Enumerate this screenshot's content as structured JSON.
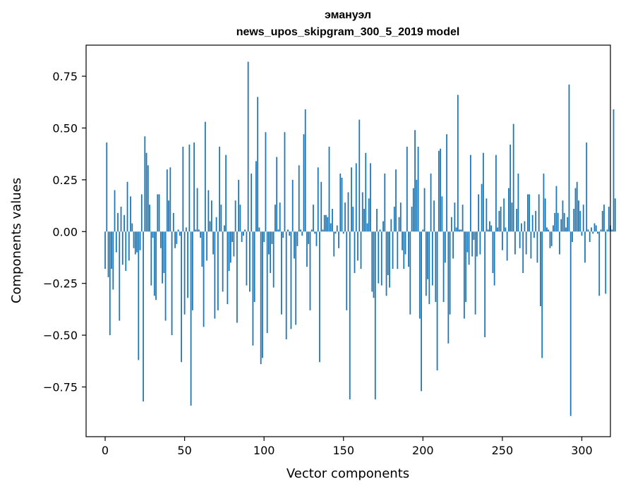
{
  "chart_data": {
    "type": "bar",
    "title_lines": [
      "эмануэл",
      "news_upos_skipgram_300_5_2019 model"
    ],
    "xlabel": "Vector components",
    "ylabel": "Components values",
    "xlim": [
      -12,
      318
    ],
    "ylim": [
      -0.99,
      0.9
    ],
    "xticks": [
      0,
      50,
      100,
      150,
      200,
      250,
      300
    ],
    "xtick_labels": [
      "0",
      "50",
      "100",
      "150",
      "200",
      "250",
      "300"
    ],
    "yticks": [
      -0.75,
      -0.5,
      -0.25,
      0.0,
      0.25,
      0.5,
      0.75
    ],
    "ytick_labels": [
      "−0.75",
      "−0.50",
      "−0.25",
      "0.00",
      "0.25",
      "0.50",
      "0.75"
    ],
    "grid": false,
    "bar_color": "#1f77b4",
    "values": [
      -0.18,
      0.43,
      -0.22,
      -0.5,
      -0.18,
      -0.28,
      0.2,
      -0.1,
      0.09,
      -0.43,
      0.12,
      -0.16,
      0.08,
      -0.19,
      0.24,
      -0.14,
      0.17,
      0.04,
      -0.08,
      -0.11,
      -0.1,
      -0.62,
      -0.09,
      0.18,
      -0.82,
      0.46,
      0.38,
      0.32,
      0.13,
      -0.26,
      -0.03,
      -0.31,
      -0.33,
      0.18,
      0.18,
      -0.08,
      -0.25,
      -0.2,
      -0.43,
      0.3,
      0.15,
      0.31,
      -0.5,
      0.09,
      -0.08,
      -0.06,
      0.01,
      -0.02,
      -0.63,
      0.41,
      -0.4,
      0.02,
      -0.32,
      0.42,
      -0.84,
      -0.38,
      0.43,
      0.01,
      0.21,
      0.01,
      -0.03,
      -0.17,
      -0.46,
      0.53,
      -0.14,
      0.2,
      0.05,
      0.15,
      -0.11,
      -0.42,
      0.07,
      -0.38,
      0.41,
      0.13,
      -0.29,
      0.03,
      0.37,
      -0.35,
      -0.19,
      -0.15,
      -0.05,
      -0.12,
      0.15,
      -0.44,
      0.25,
      0.13,
      -0.05,
      -0.02,
      0.01,
      -0.26,
      0.82,
      -0.29,
      0.28,
      -0.55,
      -0.34,
      0.34,
      0.65,
      0.02,
      -0.64,
      -0.61,
      -0.05,
      0.48,
      -0.49,
      -0.11,
      -0.2,
      -0.06,
      -0.27,
      0.13,
      0.36,
      0.01,
      0.14,
      -0.4,
      -0.03,
      0.48,
      -0.52,
      0.01,
      -0.02,
      -0.47,
      0.25,
      -0.13,
      -0.45,
      -0.07,
      0.32,
      0.01,
      -0.02,
      0.47,
      0.59,
      -0.17,
      -0.06,
      -0.38,
      0.01,
      0.13,
      -0.01,
      -0.07,
      0.31,
      -0.63,
      0.24,
      0.01,
      0.08,
      0.08,
      0.07,
      0.41,
      0.04,
      0.11,
      -0.12,
      -0.01,
      0.03,
      -0.08,
      0.28,
      0.26,
      -0.01,
      0.14,
      -0.38,
      0.19,
      -0.81,
      0.31,
      0.12,
      -0.2,
      0.33,
      -0.14,
      0.54,
      -0.18,
      0.19,
      0.11,
      0.38,
      0.04,
      0.16,
      0.33,
      -0.29,
      -0.32,
      -0.81,
      0.11,
      -0.25,
      0.01,
      -0.26,
      0.05,
      0.28,
      -0.31,
      -0.21,
      -0.27,
      0.06,
      -0.18,
      0.12,
      0.3,
      -0.18,
      0.07,
      0.14,
      -0.09,
      -0.18,
      -0.11,
      0.41,
      -0.17,
      -0.4,
      0.12,
      0.21,
      0.49,
      0.25,
      0.41,
      -0.42,
      -0.77,
      0.01,
      0.21,
      -0.31,
      -0.23,
      -0.35,
      0.28,
      -0.26,
      0.15,
      -0.34,
      -0.67,
      0.39,
      0.4,
      0.17,
      -0.34,
      -0.15,
      0.47,
      -0.54,
      -0.4,
      0.07,
      -0.13,
      0.14,
      0.02,
      0.66,
      0.01,
      0.01,
      0.13,
      -0.42,
      -0.34,
      -0.1,
      -0.16,
      0.37,
      -0.12,
      -0.04,
      -0.4,
      -0.12,
      0.18,
      -0.11,
      0.23,
      0.38,
      -0.51,
      0.16,
      0.01,
      0.05,
      0.03,
      -0.2,
      -0.26,
      0.37,
      0.02,
      0.1,
      0.12,
      -0.09,
      0.16,
      0.02,
      -0.14,
      0.21,
      0.42,
      0.14,
      0.52,
      -0.11,
      0.11,
      0.28,
      -0.08,
      0.04,
      -0.2,
      0.05,
      -0.11,
      0.18,
      0.18,
      -0.13,
      0.08,
      -0.03,
      0.1,
      -0.15,
      0.18,
      -0.36,
      -0.61,
      0.28,
      0.16,
      0.02,
      0.01,
      -0.08,
      -0.07,
      0.03,
      0.09,
      0.22,
      0.09,
      -0.11,
      0.06,
      0.15,
      0.09,
      0.02,
      0.07,
      0.71,
      -0.89,
      -0.05,
      0.11,
      0.21,
      0.24,
      0.15,
      0.1,
      -0.02,
      0.13,
      -0.15,
      0.43,
      0.01,
      -0.05,
      0.02,
      -0.01,
      0.04,
      0.03,
      -0.01,
      -0.31,
      0.01,
      0.1,
      0.13,
      -0.3,
      0.01,
      0.12,
      0.03,
      0.01,
      0.59,
      0.16
    ]
  }
}
